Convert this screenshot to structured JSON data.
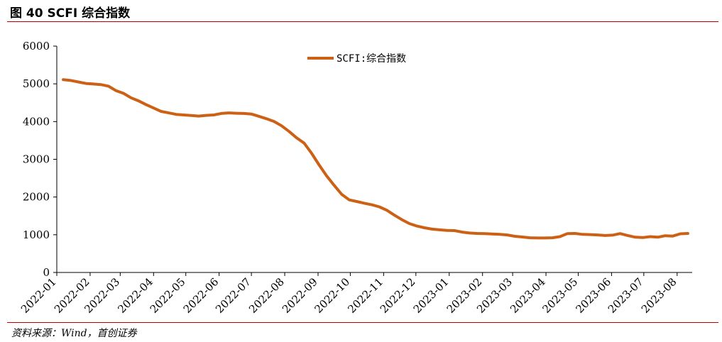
{
  "figure": {
    "title": "图 40 SCFI 综合指数",
    "source": "资料来源：Wind，首创证券"
  },
  "colors": {
    "accent_rule": "#c00000",
    "series_line": "#cc6014",
    "axis": "#000000"
  },
  "chart_data": {
    "type": "line",
    "title": "",
    "xlabel": "",
    "ylabel": "",
    "ylim": [
      0,
      6000
    ],
    "yticks": [
      0,
      1000,
      2000,
      3000,
      4000,
      5000,
      6000
    ],
    "xlim": [
      "2022-01-01",
      "2023-08-15"
    ],
    "xticks": [
      "2022-01",
      "2022-02",
      "2022-03",
      "2022-04",
      "2022-05",
      "2022-06",
      "2022-07",
      "2022-08",
      "2022-09",
      "2022-10",
      "2022-11",
      "2022-12",
      "2023-01",
      "2023-02",
      "2023-03",
      "2023-04",
      "2023-05",
      "2023-06",
      "2023-07",
      "2023-08"
    ],
    "grid": false,
    "legend": "top-center",
    "series": [
      {
        "name": "SCFI:综合指数",
        "points": [
          [
            "2022-01-07",
            5110
          ],
          [
            "2022-01-14",
            5090
          ],
          [
            "2022-01-21",
            5050
          ],
          [
            "2022-01-28",
            5010
          ],
          [
            "2022-02-04",
            4995
          ],
          [
            "2022-02-11",
            4980
          ],
          [
            "2022-02-18",
            4940
          ],
          [
            "2022-02-25",
            4820
          ],
          [
            "2022-03-04",
            4750
          ],
          [
            "2022-03-11",
            4630
          ],
          [
            "2022-03-18",
            4550
          ],
          [
            "2022-03-25",
            4450
          ],
          [
            "2022-04-01",
            4360
          ],
          [
            "2022-04-08",
            4270
          ],
          [
            "2022-04-15",
            4230
          ],
          [
            "2022-04-22",
            4190
          ],
          [
            "2022-04-29",
            4175
          ],
          [
            "2022-05-06",
            4160
          ],
          [
            "2022-05-13",
            4145
          ],
          [
            "2022-05-20",
            4165
          ],
          [
            "2022-05-27",
            4175
          ],
          [
            "2022-06-03",
            4215
          ],
          [
            "2022-06-10",
            4230
          ],
          [
            "2022-06-17",
            4220
          ],
          [
            "2022-06-24",
            4215
          ],
          [
            "2022-07-01",
            4200
          ],
          [
            "2022-07-08",
            4140
          ],
          [
            "2022-07-15",
            4075
          ],
          [
            "2022-07-22",
            4005
          ],
          [
            "2022-07-29",
            3890
          ],
          [
            "2022-08-05",
            3740
          ],
          [
            "2022-08-12",
            3570
          ],
          [
            "2022-08-19",
            3430
          ],
          [
            "2022-08-26",
            3160
          ],
          [
            "2022-09-02",
            2850
          ],
          [
            "2022-09-09",
            2560
          ],
          [
            "2022-09-16",
            2310
          ],
          [
            "2022-09-23",
            2070
          ],
          [
            "2022-09-30",
            1925
          ],
          [
            "2022-10-07",
            1880
          ],
          [
            "2022-10-14",
            1835
          ],
          [
            "2022-10-21",
            1795
          ],
          [
            "2022-10-28",
            1740
          ],
          [
            "2022-11-04",
            1650
          ],
          [
            "2022-11-11",
            1520
          ],
          [
            "2022-11-18",
            1400
          ],
          [
            "2022-11-25",
            1295
          ],
          [
            "2022-12-02",
            1230
          ],
          [
            "2022-12-09",
            1185
          ],
          [
            "2022-12-16",
            1150
          ],
          [
            "2022-12-23",
            1130
          ],
          [
            "2022-12-30",
            1115
          ],
          [
            "2023-01-06",
            1110
          ],
          [
            "2023-01-13",
            1070
          ],
          [
            "2023-01-20",
            1045
          ],
          [
            "2023-01-27",
            1035
          ],
          [
            "2023-02-03",
            1030
          ],
          [
            "2023-02-10",
            1020
          ],
          [
            "2023-02-17",
            1010
          ],
          [
            "2023-02-24",
            995
          ],
          [
            "2023-03-03",
            960
          ],
          [
            "2023-03-10",
            940
          ],
          [
            "2023-03-17",
            920
          ],
          [
            "2023-03-24",
            915
          ],
          [
            "2023-03-31",
            915
          ],
          [
            "2023-04-07",
            920
          ],
          [
            "2023-04-14",
            950
          ],
          [
            "2023-04-21",
            1030
          ],
          [
            "2023-04-28",
            1035
          ],
          [
            "2023-05-05",
            1010
          ],
          [
            "2023-05-12",
            1005
          ],
          [
            "2023-05-19",
            995
          ],
          [
            "2023-05-26",
            980
          ],
          [
            "2023-06-02",
            990
          ],
          [
            "2023-06-09",
            1030
          ],
          [
            "2023-06-16",
            980
          ],
          [
            "2023-06-23",
            935
          ],
          [
            "2023-06-30",
            925
          ],
          [
            "2023-07-07",
            950
          ],
          [
            "2023-07-14",
            935
          ],
          [
            "2023-07-21",
            975
          ],
          [
            "2023-07-28",
            965
          ],
          [
            "2023-08-04",
            1025
          ],
          [
            "2023-08-11",
            1035
          ]
        ]
      }
    ]
  }
}
